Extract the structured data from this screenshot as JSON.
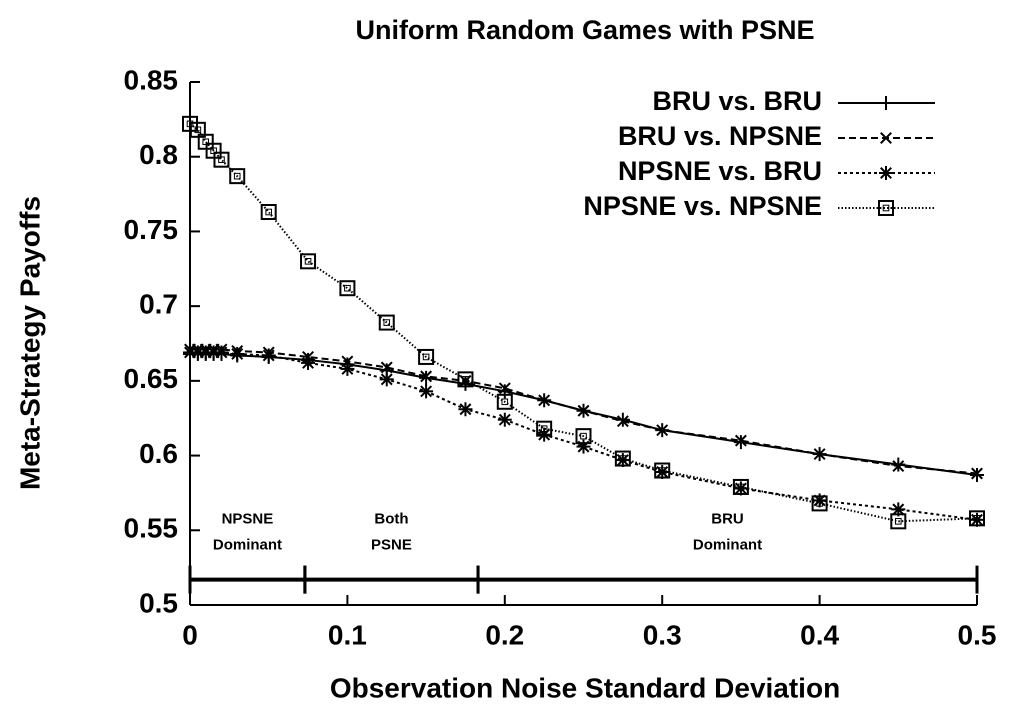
{
  "chart_data": {
    "type": "line",
    "title": "Uniform Random Games with PSNE",
    "x_label": "Observation Noise Standard Deviation",
    "y_label": "Meta-Strategy Payoffs",
    "x": [
      0,
      0.005,
      0.01,
      0.015,
      0.02,
      0.03,
      0.05,
      0.075,
      0.1,
      0.125,
      0.15,
      0.175,
      0.2,
      0.225,
      0.25,
      0.275,
      0.3,
      0.35,
      0.4,
      0.45,
      0.5
    ],
    "series": [
      {
        "name": "BRU vs. BRU",
        "color": "#000000",
        "dash": "solid",
        "marker": "plus",
        "values": [
          0.668,
          0.668,
          0.668,
          0.668,
          0.668,
          0.667,
          0.666,
          0.664,
          0.661,
          0.657,
          0.652,
          0.648,
          0.643,
          0.637,
          0.63,
          0.624,
          0.617,
          0.609,
          0.601,
          0.594,
          0.587
        ]
      },
      {
        "name": "BRU vs. NPSNE",
        "color": "#000000",
        "dash": "dashed",
        "marker": "x",
        "values": [
          0.671,
          0.671,
          0.671,
          0.671,
          0.671,
          0.67,
          0.669,
          0.666,
          0.663,
          0.659,
          0.653,
          0.65,
          0.645,
          0.637,
          0.63,
          0.623,
          0.617,
          0.61,
          0.601,
          0.593,
          0.588
        ]
      },
      {
        "name": "NPSNE vs. BRU",
        "color": "#000000",
        "dash": "dotted",
        "marker": "star",
        "values": [
          0.669,
          0.669,
          0.669,
          0.669,
          0.669,
          0.668,
          0.667,
          0.662,
          0.658,
          0.651,
          0.643,
          0.631,
          0.624,
          0.614,
          0.606,
          0.597,
          0.589,
          0.578,
          0.57,
          0.564,
          0.557
        ]
      },
      {
        "name": "NPSNE vs. NPSNE",
        "color": "#000000",
        "dash": "finedotted",
        "marker": "square",
        "values": [
          0.822,
          0.818,
          0.81,
          0.804,
          0.798,
          0.787,
          0.763,
          0.73,
          0.712,
          0.689,
          0.666,
          0.651,
          0.636,
          0.618,
          0.613,
          0.598,
          0.59,
          0.579,
          0.568,
          0.556,
          0.558
        ]
      }
    ],
    "regions": [
      {
        "label": [
          "NPSNE",
          "Dominant"
        ],
        "start": 0,
        "end": 0.073
      },
      {
        "label": [
          "Both",
          "PSNE"
        ],
        "start": 0.073,
        "end": 0.183
      },
      {
        "label": [
          "BRU",
          "Dominant"
        ],
        "start": 0.183,
        "end": 0.5
      }
    ],
    "region_bar_y": 0.517,
    "xlim": [
      0,
      0.5
    ],
    "xticks": [
      0,
      0.1,
      0.2,
      0.3,
      0.4,
      0.5
    ],
    "ylim": [
      0.5,
      0.85
    ],
    "yticks": [
      0.5,
      0.55,
      0.6,
      0.65,
      0.7,
      0.75,
      0.8,
      0.85
    ],
    "legend": "upper right",
    "grid": false
  }
}
